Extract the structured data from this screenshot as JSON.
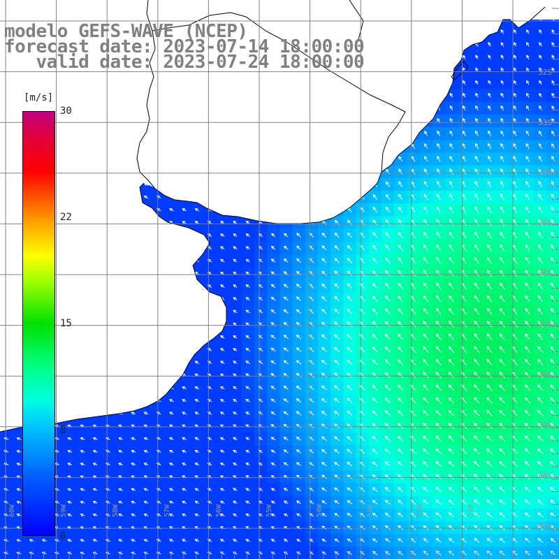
{
  "title": {
    "line1": "modelo GEFS-WAVE (NCEP)",
    "line2": "forecast date: 2023-07-14 18:00:00",
    "line3": "   valid date: 2023-07-24 18:00:00"
  },
  "colorbar": {
    "unit": "[m/s]",
    "ticks": [
      "30",
      "22",
      "15",
      "8",
      "0"
    ],
    "tick_values": [
      30,
      22,
      15,
      8,
      0
    ],
    "colors": [
      "#0000ff",
      "#00c8ff",
      "#00ff80",
      "#00e000",
      "#ffff00",
      "#ff0000",
      "#c00080"
    ]
  },
  "axes": {
    "lon_labels": [
      "60W",
      "59W",
      "58W",
      "57W",
      "56W",
      "55W",
      "54W",
      "53W",
      "52W",
      "51W"
    ],
    "lat_labels": [
      "32S",
      "33S",
      "34S",
      "35S",
      "36S",
      "37S",
      "38S",
      "39S",
      "40S",
      "41S"
    ]
  },
  "map": {
    "field": "wind speed",
    "land_color": "#ffffff",
    "grid_color": "#808080",
    "arrow_color": "#ffffff"
  }
}
